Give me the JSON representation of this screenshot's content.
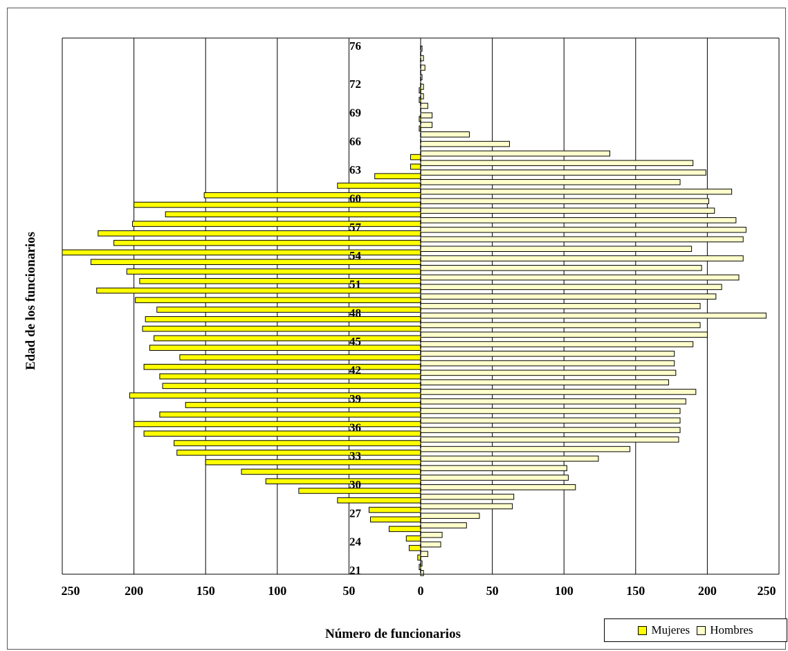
{
  "chart_data": {
    "type": "bar",
    "orientation": "horizontal",
    "layout": "population-pyramid",
    "xlabel": "Número de funcionarios",
    "ylabel": "Edad de los funcionarios",
    "xlim": [
      -250,
      250
    ],
    "x_tick_labels": [
      "250",
      "200",
      "150",
      "100",
      "50",
      "0",
      "50",
      "100",
      "150",
      "200",
      "250"
    ],
    "x_tick_values": [
      -250,
      -200,
      -150,
      -100,
      -50,
      0,
      50,
      100,
      150,
      200,
      250
    ],
    "y_tick_labels": [
      "21",
      "24",
      "27",
      "30",
      "33",
      "36",
      "39",
      "42",
      "45",
      "48",
      "51",
      "54",
      "57",
      "60",
      "63",
      "66",
      "69",
      "72",
      "76"
    ],
    "grid": true,
    "legend_position": "bottom-right",
    "categories": [
      "21",
      "22",
      "23",
      "24",
      "25",
      "26",
      "27",
      "28",
      "29",
      "30",
      "31",
      "32",
      "33",
      "34",
      "35",
      "36",
      "37",
      "38",
      "39",
      "40",
      "41",
      "42",
      "43",
      "44",
      "45",
      "46",
      "47",
      "48",
      "49",
      "50",
      "51",
      "52",
      "53",
      "54",
      "55",
      "56",
      "57",
      "58",
      "59",
      "60",
      "61",
      "62",
      "63",
      "64",
      "65",
      "66",
      "67",
      "68",
      "69",
      "70",
      "71",
      "72",
      "73",
      "74",
      "75",
      "76"
    ],
    "series": [
      {
        "name": "Mujeres",
        "color": "#ffff00",
        "values": [
          1,
          2,
          8,
          10,
          22,
          35,
          36,
          58,
          85,
          108,
          125,
          150,
          170,
          172,
          193,
          200,
          182,
          164,
          203,
          180,
          182,
          193,
          168,
          189,
          186,
          194,
          192,
          184,
          199,
          226,
          196,
          205,
          230,
          250,
          214,
          225,
          201,
          178,
          200,
          151,
          58,
          32,
          7,
          7,
          0,
          0,
          1,
          1,
          0,
          1,
          1,
          0,
          0,
          0,
          0,
          0
        ]
      },
      {
        "name": "Hombres",
        "color": "#ffffcc",
        "values": [
          2,
          1,
          5,
          14,
          15,
          32,
          41,
          64,
          65,
          108,
          103,
          102,
          124,
          146,
          180,
          181,
          181,
          181,
          185,
          192,
          173,
          178,
          177,
          177,
          190,
          200,
          195,
          241,
          195,
          206,
          210,
          222,
          196,
          225,
          189,
          225,
          227,
          220,
          205,
          201,
          217,
          181,
          199,
          190,
          132,
          62,
          34,
          8,
          8,
          5,
          2,
          2,
          1,
          3,
          2,
          1
        ]
      }
    ]
  }
}
